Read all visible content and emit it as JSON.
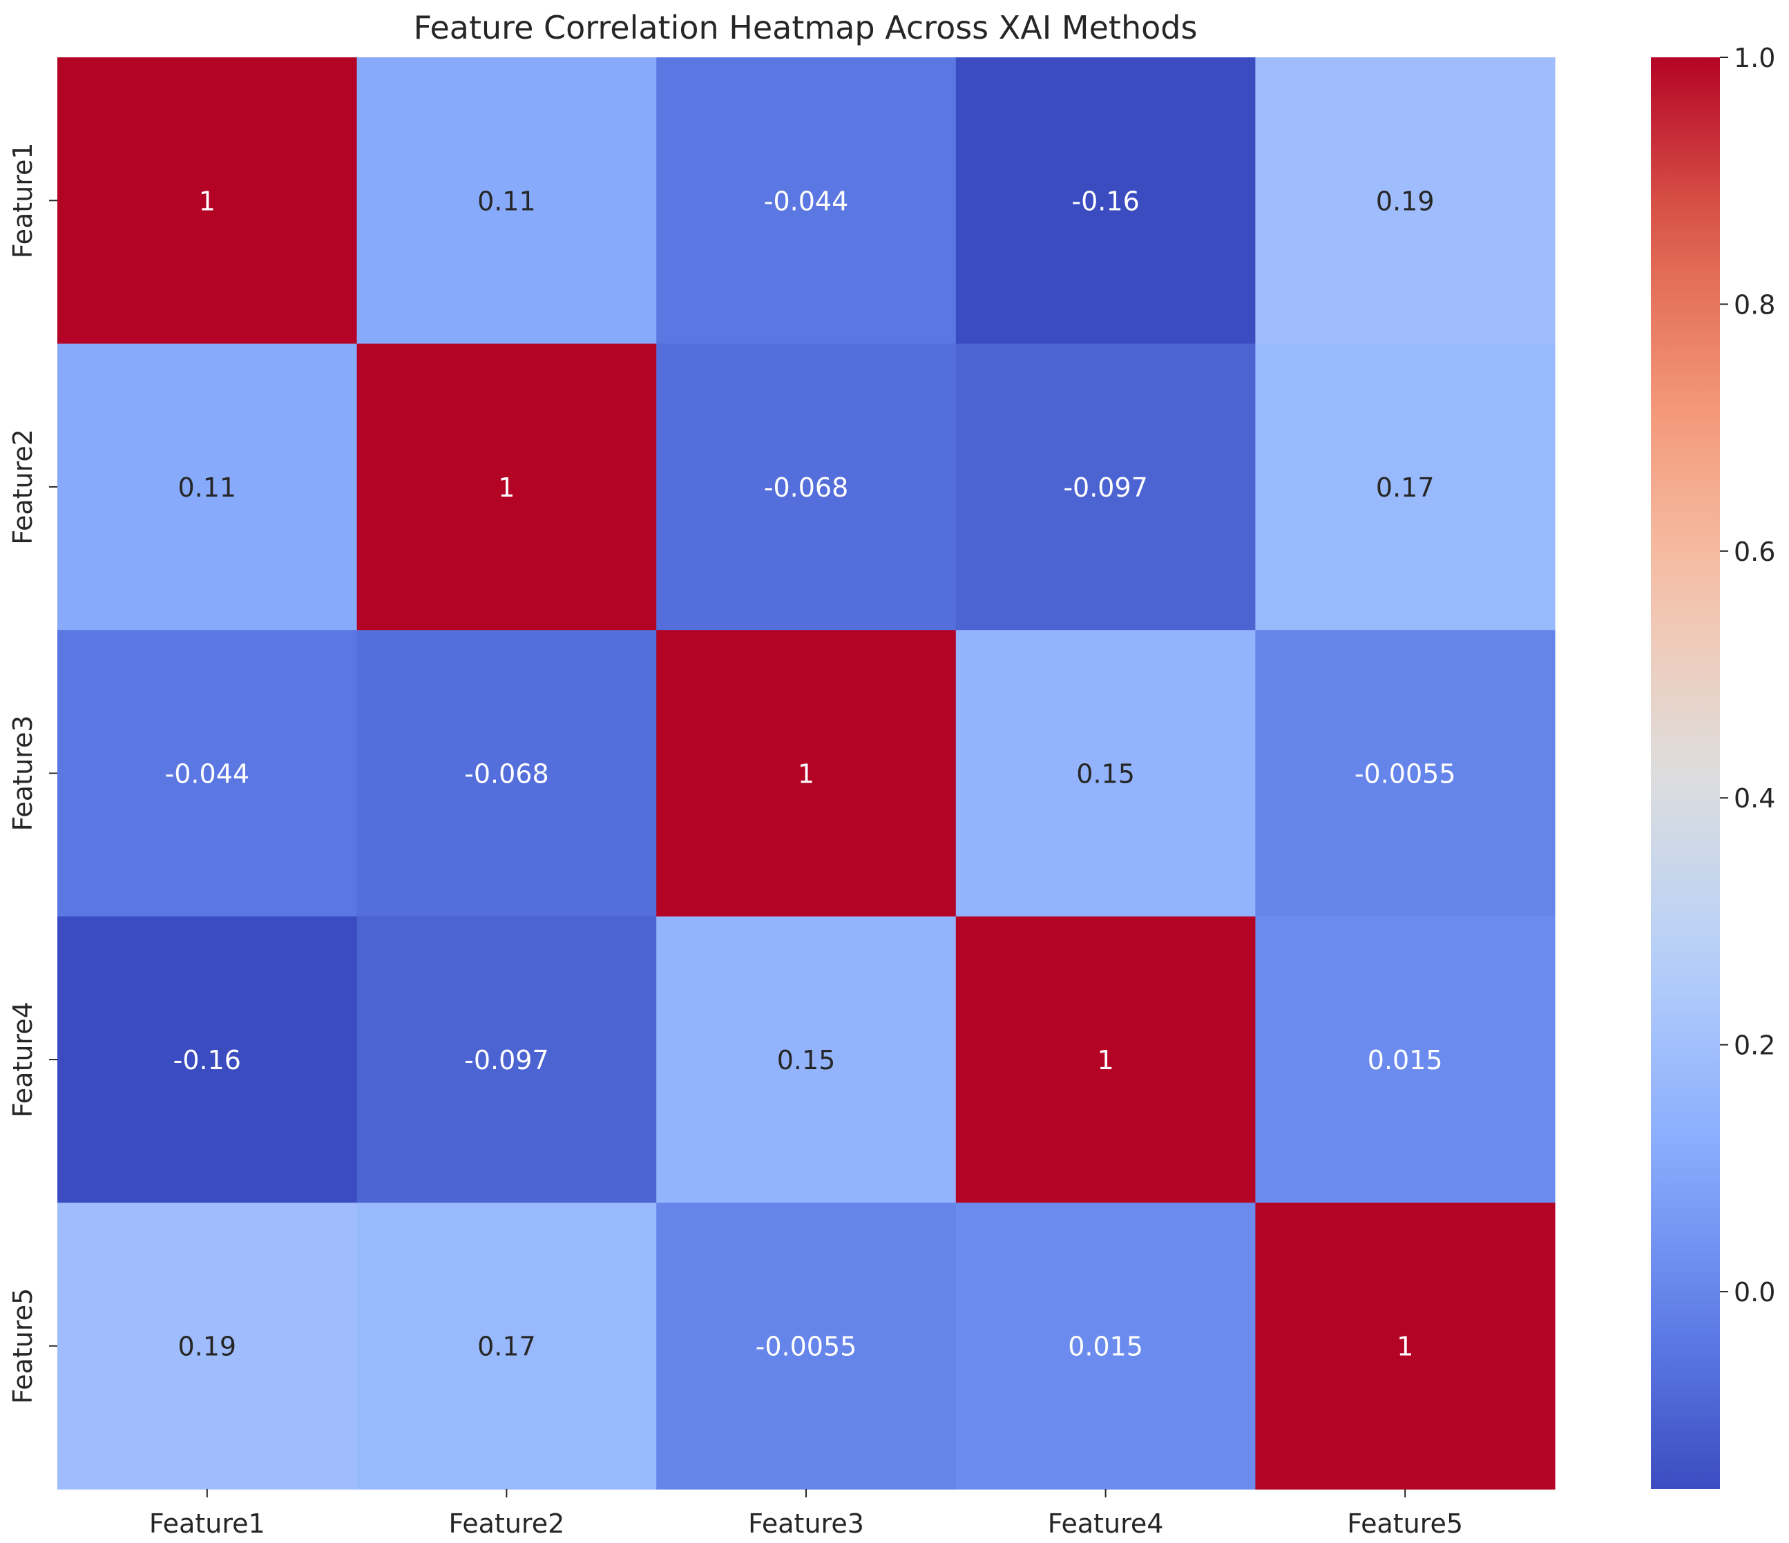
{
  "chart_data": {
    "type": "heatmap",
    "title": "Feature Correlation Heatmap Across XAI Methods",
    "xlabel": "",
    "ylabel": "",
    "rows": [
      "Feature1",
      "Feature2",
      "Feature3",
      "Feature4",
      "Feature5"
    ],
    "columns": [
      "Feature1",
      "Feature2",
      "Feature3",
      "Feature4",
      "Feature5"
    ],
    "values": [
      [
        1,
        0.11,
        -0.044,
        -0.16,
        0.19
      ],
      [
        0.11,
        1,
        -0.068,
        -0.097,
        0.17
      ],
      [
        -0.044,
        -0.068,
        1,
        0.15,
        -0.0055
      ],
      [
        -0.16,
        -0.097,
        0.15,
        1,
        0.015
      ],
      [
        0.19,
        0.17,
        -0.0055,
        0.015,
        1
      ]
    ],
    "cell_labels": [
      [
        "1",
        "0.11",
        "-0.044",
        "-0.16",
        "0.19"
      ],
      [
        "0.11",
        "1",
        "-0.068",
        "-0.097",
        "0.17"
      ],
      [
        "-0.044",
        "-0.068",
        "1",
        "0.15",
        "-0.0055"
      ],
      [
        "-0.16",
        "-0.097",
        "0.15",
        "1",
        "0.015"
      ],
      [
        "0.19",
        "0.17",
        "-0.0055",
        "0.015",
        "1"
      ]
    ],
    "colormap": "coolwarm",
    "color_range": [
      -0.16,
      1.0
    ],
    "colorbar": {
      "ticks": [
        0.0,
        0.2,
        0.4,
        0.6,
        0.8,
        1.0
      ],
      "tick_labels": [
        "0.0",
        "0.2",
        "0.4",
        "0.6",
        "0.8",
        "1.0"
      ],
      "position": "right"
    },
    "grid": false
  }
}
